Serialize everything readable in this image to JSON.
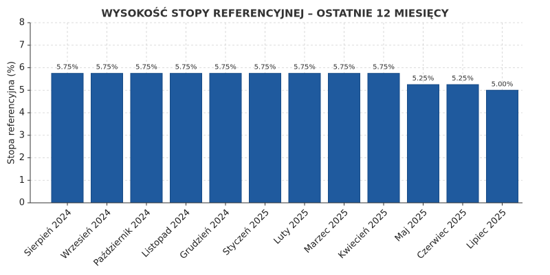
{
  "chart_data": {
    "type": "bar",
    "title": "WYSOKOŚĆ STOPY REFERENCYJNEJ – OSTATNIE 12 MIESIĘCY",
    "y_label": "Stopa referencyjna (%)",
    "categories": [
      "Sierpień 2024",
      "Wrzesień 2024",
      "Październik 2024",
      "Listopad 2024",
      "Grudzień 2024",
      "Styczeń 2025",
      "Luty 2025",
      "Marzec 2025",
      "Kwiecień 2025",
      "Maj 2025",
      "Czerwiec 2025",
      "Lipiec 2025"
    ],
    "values": [
      5.75,
      5.75,
      5.75,
      5.75,
      5.75,
      5.75,
      5.75,
      5.75,
      5.75,
      5.25,
      5.25,
      5.0
    ],
    "value_labels": [
      "5.75%",
      "5.75%",
      "5.75%",
      "5.75%",
      "5.75%",
      "5.75%",
      "5.75%",
      "5.75%",
      "5.75%",
      "5.25%",
      "5.25%",
      "5.00%"
    ],
    "color": "#1f5a9e",
    "ylim": [
      0,
      8
    ],
    "yticks": [
      0,
      1,
      2,
      3,
      4,
      5,
      6,
      7,
      8
    ],
    "grid": true
  }
}
